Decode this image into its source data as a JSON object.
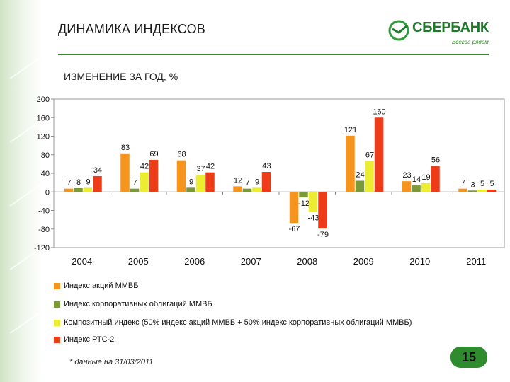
{
  "slide": {
    "title": "ДИНАМИКА ИНДЕКСОВ",
    "subtitle": "ИЗМЕНЕНИЕ ЗА ГОД, %",
    "footnote": "* данные на 31/03/2011",
    "page_number": "15"
  },
  "logo": {
    "name": "СБЕРБАНК",
    "tagline": "Всегда рядом",
    "brand_color": "#1f7a2a"
  },
  "chart_data": {
    "type": "bar",
    "title": "",
    "xlabel": "",
    "ylabel": "",
    "ylim": [
      -120,
      200
    ],
    "y_ticks": [
      "200",
      "160",
      "120",
      "80",
      "40",
      "0",
      "-40",
      "-80",
      "-120"
    ],
    "categories": [
      "2004",
      "2005",
      "2006",
      "2007",
      "2008",
      "2009",
      "2010",
      "2011"
    ],
    "series": [
      {
        "name": "Индекс акций ММВБ",
        "color": "#f7941d",
        "values": [
          7,
          83,
          68,
          12,
          -67,
          121,
          23,
          7
        ],
        "labels": [
          "7",
          "83",
          "68",
          "12",
          "-67",
          "121",
          "23",
          "7"
        ]
      },
      {
        "name": "Индекс корпоративных облигаций ММВБ",
        "color": "#7a9a3a",
        "values": [
          8,
          7,
          9,
          7,
          -12,
          24,
          14,
          3
        ],
        "labels": [
          "8",
          "7",
          "9",
          "7",
          "-12",
          "24",
          "14",
          "3"
        ]
      },
      {
        "name": "Композитный индекс (50% индекс акций ММВБ + 50% индекс корпоративных облигаций ММВБ)",
        "color": "#ecec32",
        "values": [
          9,
          42,
          37,
          9,
          -43,
          67,
          19,
          5
        ],
        "labels": [
          "9",
          "42",
          "37",
          "9",
          "-43",
          "67",
          "19",
          "5"
        ]
      },
      {
        "name": "Индекс РТС-2",
        "color": "#ee3b18",
        "values": [
          34,
          69,
          42,
          43,
          -79,
          160,
          56,
          5
        ],
        "labels": [
          "34",
          "69",
          "42",
          "43",
          "-79",
          "160",
          "56",
          "5"
        ]
      }
    ],
    "grid": false,
    "legend_position": "bottom"
  }
}
